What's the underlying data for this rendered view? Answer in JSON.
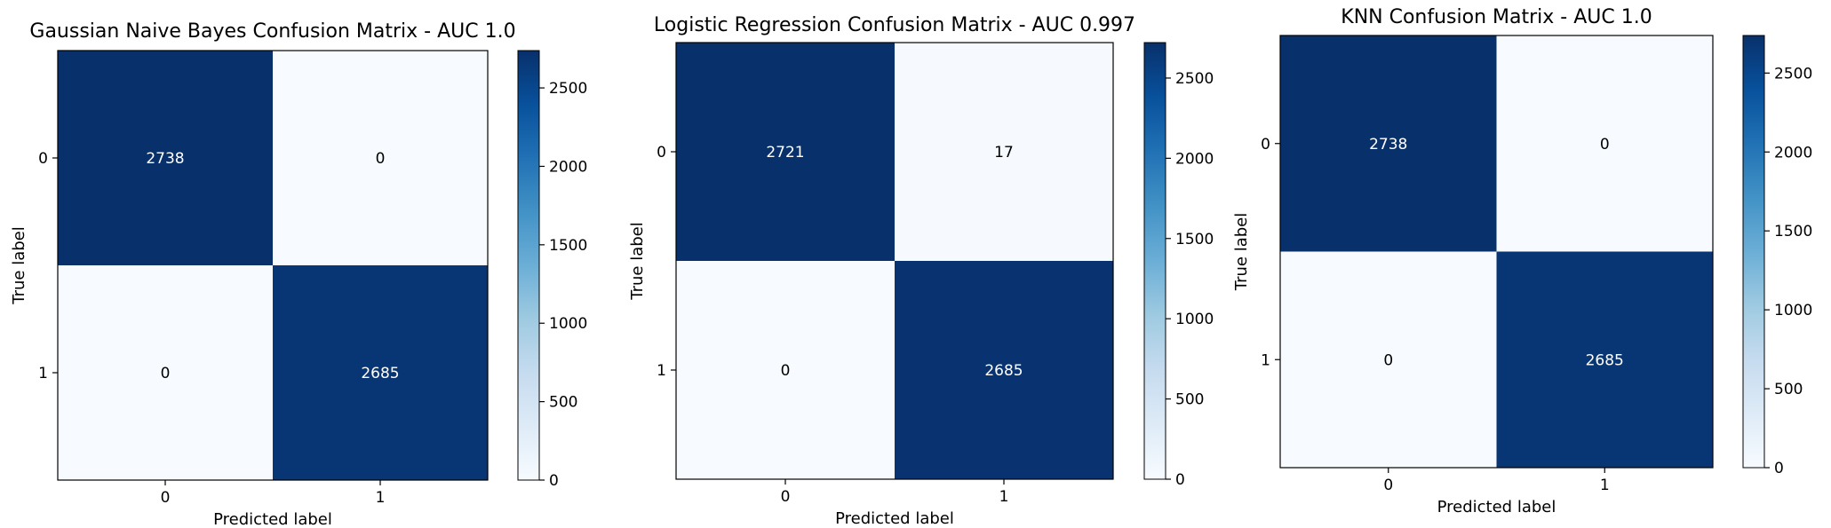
{
  "chart_data": [
    {
      "type": "heatmap",
      "title": "Gaussian Naive Bayes Confusion Matrix - AUC 1.0",
      "xlabel": "Predicted label",
      "ylabel": "True label",
      "x_tick_labels": [
        "0",
        "1"
      ],
      "y_tick_labels": [
        "0",
        "1"
      ],
      "matrix": [
        [
          2738,
          0
        ],
        [
          0,
          2685
        ]
      ],
      "cell_labels": [
        [
          "2738",
          "0"
        ],
        [
          "0",
          "2685"
        ]
      ],
      "colormap": "Blues",
      "colorbar": {
        "range": [
          0,
          2738
        ],
        "ticks": [
          0,
          500,
          1000,
          1500,
          2000,
          2500
        ],
        "tick_labels": [
          "0",
          "500",
          "1000",
          "1500",
          "2000",
          "2500"
        ]
      }
    },
    {
      "type": "heatmap",
      "title": "Logistic Regression Confusion Matrix - AUC 0.997",
      "xlabel": "Predicted label",
      "ylabel": "True label",
      "x_tick_labels": [
        "0",
        "1"
      ],
      "y_tick_labels": [
        "0",
        "1"
      ],
      "matrix": [
        [
          2721,
          17
        ],
        [
          0,
          2685
        ]
      ],
      "cell_labels": [
        [
          "2721",
          "17"
        ],
        [
          "0",
          "2685"
        ]
      ],
      "colormap": "Blues",
      "colorbar": {
        "range": [
          0,
          2721
        ],
        "ticks": [
          0,
          500,
          1000,
          1500,
          2000,
          2500
        ],
        "tick_labels": [
          "0",
          "500",
          "1000",
          "1500",
          "2000",
          "2500"
        ]
      }
    },
    {
      "type": "heatmap",
      "title": "KNN Confusion Matrix - AUC 1.0",
      "xlabel": "Predicted label",
      "ylabel": "True label",
      "x_tick_labels": [
        "0",
        "1"
      ],
      "y_tick_labels": [
        "0",
        "1"
      ],
      "matrix": [
        [
          2738,
          0
        ],
        [
          0,
          2685
        ]
      ],
      "cell_labels": [
        [
          "2738",
          "0"
        ],
        [
          "0",
          "2685"
        ]
      ],
      "colormap": "Blues",
      "colorbar": {
        "range": [
          0,
          2738
        ],
        "ticks": [
          0,
          500,
          1000,
          1500,
          2000,
          2500
        ],
        "tick_labels": [
          "0",
          "500",
          "1000",
          "1500",
          "2000",
          "2500"
        ]
      }
    }
  ],
  "colors": {
    "dark": "#08306b",
    "light": "#f7fbff",
    "text_on_dark": "#ffffff",
    "text_on_light": "#000000"
  }
}
